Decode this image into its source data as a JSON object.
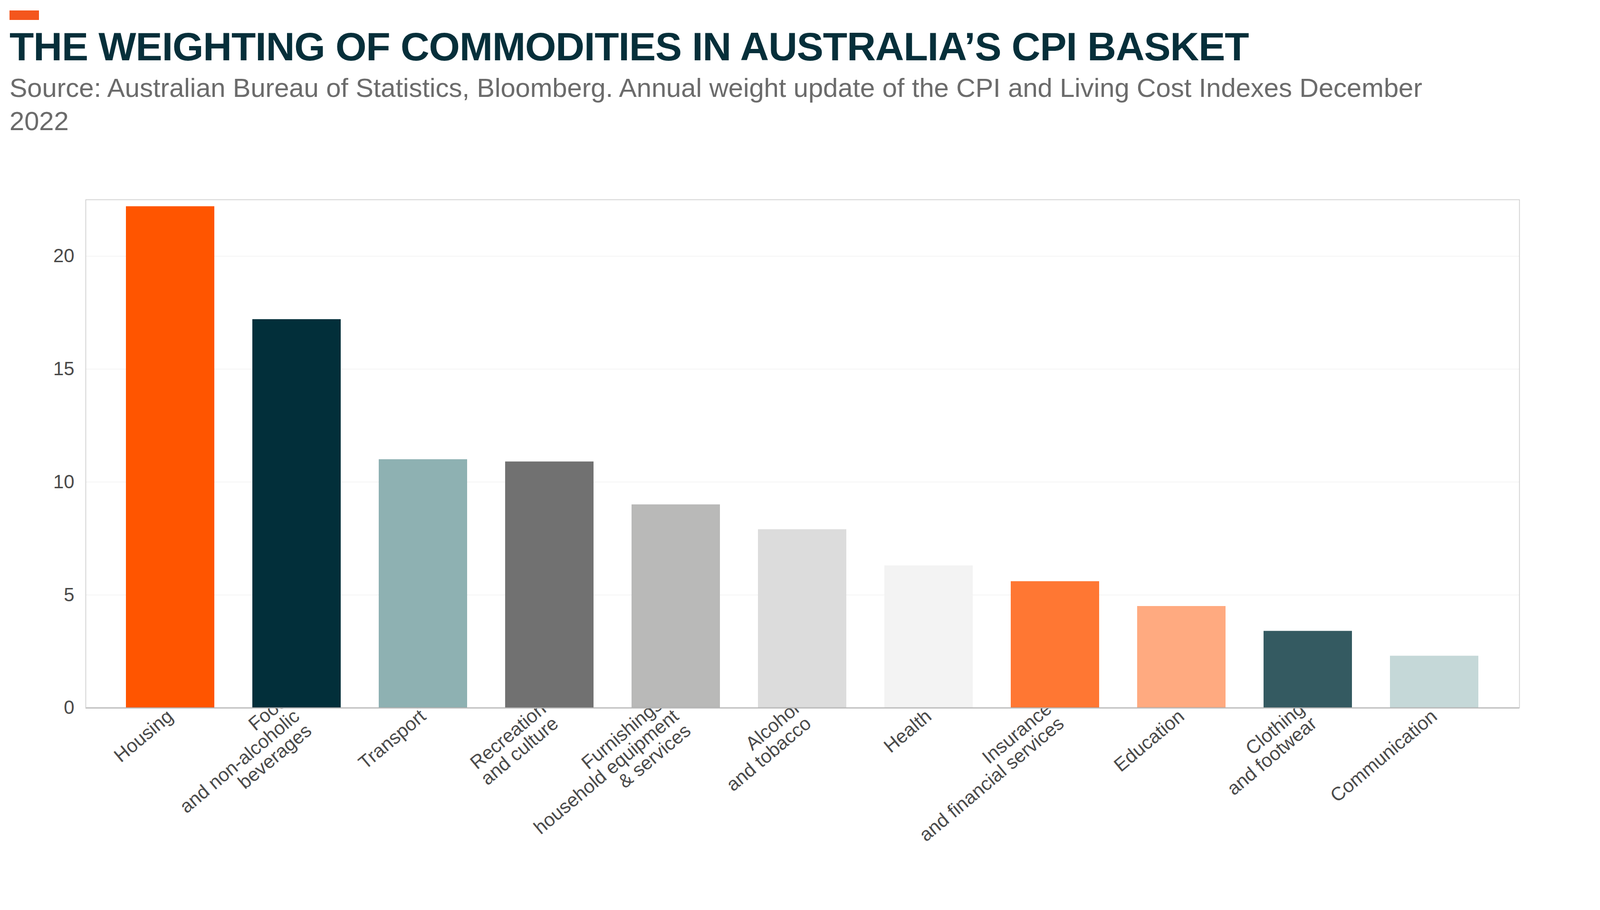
{
  "chart_data": {
    "type": "bar",
    "title": "THE WEIGHTING OF COMMODITIES IN AUSTRALIA’S CPI BASKET",
    "subtitle": "Source: Australian Bureau of Statistics, Bloomberg. Annual weight update of the CPI and Living Cost Indexes December 2022",
    "categories": [
      "Housing",
      "Food\nand non-alcoholic\nbeverages",
      "Transport",
      "Recreation\nand culture",
      "Furnishings,\nhousehold equipment\n& services",
      "Alcohol\nand tobacco",
      "Health",
      "Insurance\nand financial services",
      "Education",
      "Clothing\nand footwear",
      "Communication"
    ],
    "values": [
      22.2,
      17.2,
      11.0,
      10.9,
      9.0,
      7.9,
      6.3,
      5.6,
      4.5,
      3.4,
      2.3
    ],
    "colors": [
      "#ff5500",
      "#022f3a",
      "#8eb1b2",
      "#717171",
      "#b9b9b8",
      "#dcdcdc",
      "#f3f3f3",
      "#ff7733",
      "#ffaa80",
      "#345a61",
      "#c5d8d8"
    ],
    "ylim": [
      0,
      22.5
    ],
    "yticks": [
      0,
      5,
      10,
      15,
      20
    ],
    "grid": true
  }
}
